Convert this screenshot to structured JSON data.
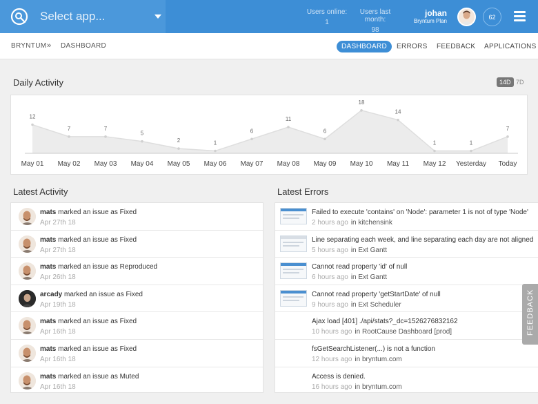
{
  "header": {
    "app_select_placeholder": "Select app...",
    "users_online_label": "Users online:",
    "users_online_value": "1",
    "users_last_month_label": "Users last month:",
    "users_last_month_value": "98",
    "user_name": "johan",
    "user_plan": "Bryntum Plan",
    "notification_count": "62",
    "brand_color": "#3d8ed6"
  },
  "breadcrumb": {
    "root": "BRYNTUM",
    "separator": "»",
    "current": "DASHBOARD"
  },
  "nav": {
    "tabs": [
      "DASHBOARD",
      "ERRORS",
      "FEEDBACK",
      "APPLICATIONS"
    ],
    "active": "DASHBOARD"
  },
  "daily_activity": {
    "title": "Daily Activity",
    "range_options": [
      "14D",
      "7D"
    ],
    "active_range": "14D"
  },
  "chart_data": {
    "type": "area",
    "categories": [
      "May 01",
      "May 02",
      "May 03",
      "May 04",
      "May 05",
      "May 06",
      "May 07",
      "May 08",
      "May 09",
      "May 10",
      "May 11",
      "May 12",
      "Yesterday",
      "Today"
    ],
    "values": [
      12,
      7,
      7,
      5,
      2,
      1,
      6,
      11,
      6,
      18,
      14,
      1,
      1,
      7
    ],
    "ylim": [
      0,
      22
    ],
    "title": "",
    "xlabel": "",
    "ylabel": "",
    "grid": false
  },
  "latest_activity": {
    "title": "Latest Activity",
    "items": [
      {
        "user": "mats",
        "action": "marked an issue as Fixed",
        "date": "Apr 27th 18",
        "avatar": "mats"
      },
      {
        "user": "mats",
        "action": "marked an issue as Fixed",
        "date": "Apr 27th 18",
        "avatar": "mats"
      },
      {
        "user": "mats",
        "action": "marked an issue as Reproduced",
        "date": "Apr 26th 18",
        "avatar": "mats"
      },
      {
        "user": "arcady",
        "action": "marked an issue as Fixed",
        "date": "Apr 19th 18",
        "avatar": "arcady"
      },
      {
        "user": "mats",
        "action": "marked an issue as Fixed",
        "date": "Apr 16th 18",
        "avatar": "mats"
      },
      {
        "user": "mats",
        "action": "marked an issue as Fixed",
        "date": "Apr 16th 18",
        "avatar": "mats"
      },
      {
        "user": "mats",
        "action": "marked an issue as Muted",
        "date": "Apr 16th 18",
        "avatar": "mats"
      }
    ]
  },
  "latest_errors": {
    "title": "Latest Errors",
    "items": [
      {
        "message": "Failed to execute 'contains' on 'Node': parameter 1 is not of type 'Node'",
        "time": "2 hours ago",
        "location": "in kitchensink",
        "thumb": "blue"
      },
      {
        "message": "Line separating each week, and line separating each day are not aligned",
        "time": "5 hours ago",
        "location": "in Ext Gantt",
        "thumb": "plain"
      },
      {
        "message": "Cannot read property 'id' of null",
        "time": "6 hours ago",
        "location": "in Ext Gantt",
        "thumb": "blue"
      },
      {
        "message": "Cannot read property 'getStartDate' of null",
        "time": "9 hours ago",
        "location": "in Ext Scheduler",
        "thumb": "blue"
      },
      {
        "message": "Ajax load [401] ./api/stats?_dc=1526276832162",
        "time": "10 hours ago",
        "location": "in RootCause Dashboard [prod]",
        "thumb": "none"
      },
      {
        "message": "fsGetSearchListener(...) is not a function",
        "time": "12 hours ago",
        "location": "in bryntum.com",
        "thumb": "none"
      },
      {
        "message": "Access is denied.",
        "time": "16 hours ago",
        "location": "in bryntum.com",
        "thumb": "none"
      }
    ]
  },
  "feedback_tab_label": "FEEDBACK"
}
